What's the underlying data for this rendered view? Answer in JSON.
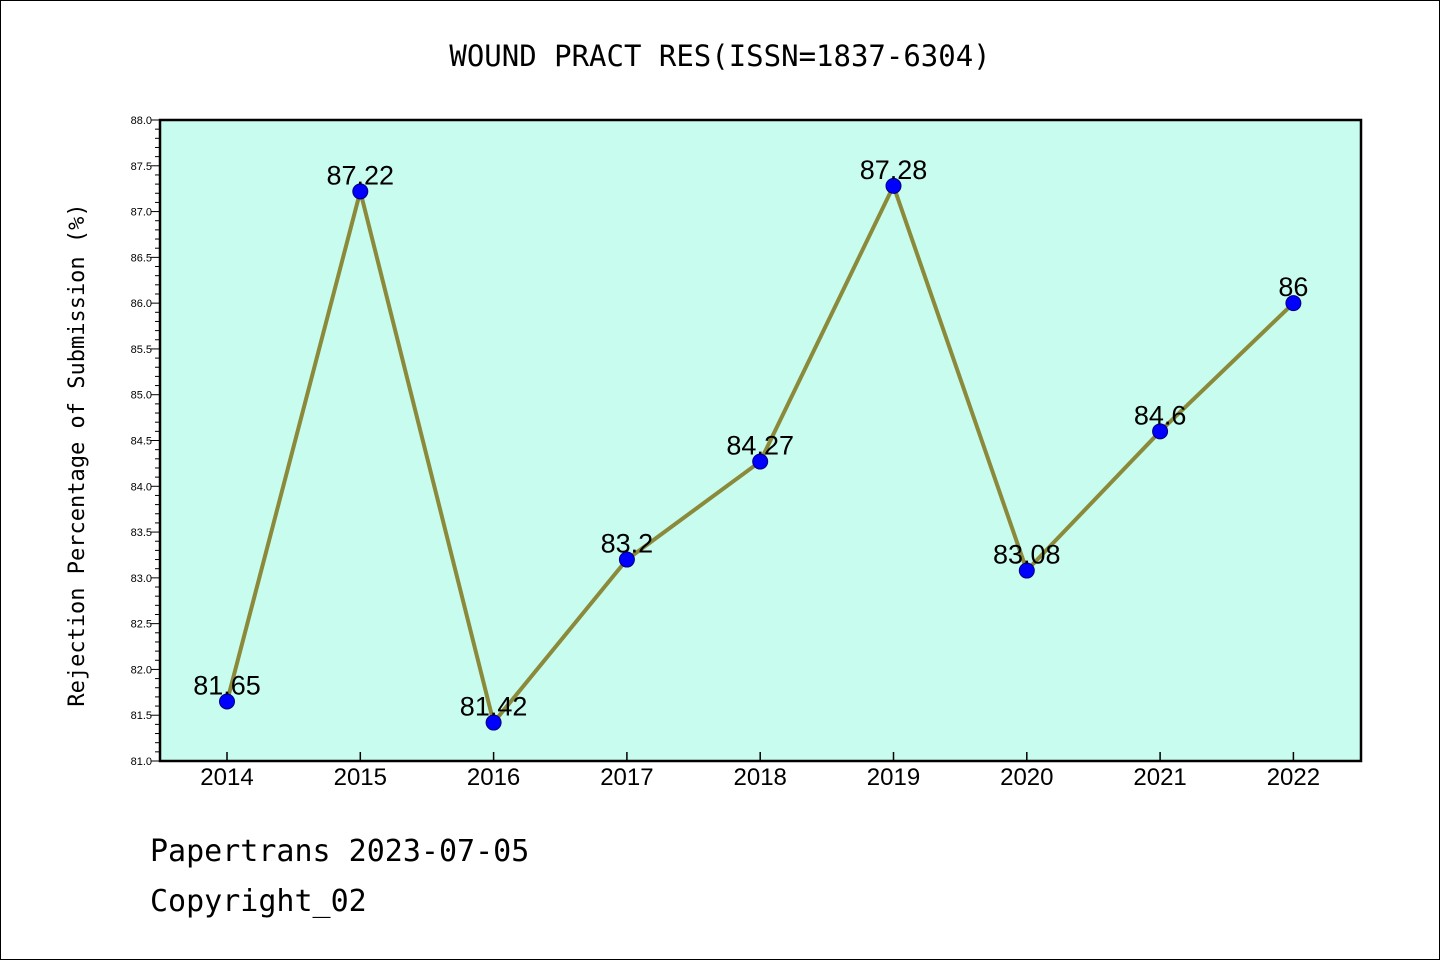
{
  "chart_data": {
    "type": "line",
    "title": "WOUND PRACT RES(ISSN=1837-6304)",
    "ylabel": "Rejection Percentage of Submission (%)",
    "xlabel": "",
    "categories": [
      "2014",
      "2015",
      "2016",
      "2017",
      "2018",
      "2019",
      "2020",
      "2021",
      "2022"
    ],
    "values": [
      81.65,
      87.22,
      81.42,
      83.2,
      84.27,
      87.28,
      83.08,
      84.6,
      86
    ],
    "data_labels": [
      "81.65",
      "87.22",
      "81.42",
      "83.2",
      "84.27",
      "87.28",
      "83.08",
      "84.6",
      "86"
    ],
    "ylim": [
      81.0,
      88.0
    ],
    "yticks": [
      "81.0",
      "81.5",
      "82.0",
      "82.5",
      "83.0",
      "83.5",
      "84.0",
      "84.5",
      "85.0",
      "85.5",
      "86.0",
      "86.5",
      "87.0",
      "87.5",
      "88.0"
    ],
    "grid": false,
    "colors": {
      "plot_background": "#c8fcee",
      "line": "#8b8a3a",
      "marker": "#0000ff"
    }
  },
  "footer": {
    "line1": "Papertrans 2023-07-05",
    "line2": "Copyright_02"
  }
}
